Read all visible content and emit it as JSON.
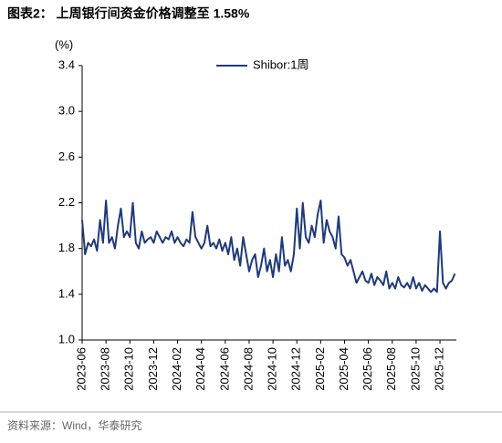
{
  "chart_data": {
    "type": "line",
    "title": "图表2： 上周银行间资金价格调整至 1.58%",
    "ylabel": "(%)",
    "source": "资料来源：Wind，华泰研究",
    "legend_position": "upper center",
    "ylim": [
      1.0,
      3.4
    ],
    "yticks": [
      {
        "value": 1.0,
        "label": "1.0"
      },
      1.4,
      1.8,
      2.2,
      2.6,
      {
        "value": 3.0,
        "label": "3.0"
      },
      3.4
    ],
    "categories": [
      "2023-06",
      null,
      null,
      null,
      null,
      null,
      null,
      null,
      "2023-08",
      null,
      null,
      null,
      null,
      null,
      null,
      null,
      "2023-10",
      null,
      null,
      null,
      null,
      null,
      null,
      null,
      "2023-12",
      null,
      null,
      null,
      null,
      null,
      null,
      null,
      "2024-02",
      null,
      null,
      null,
      null,
      null,
      null,
      null,
      "2024-04",
      null,
      null,
      null,
      null,
      null,
      null,
      null,
      "2024-06",
      null,
      null,
      null,
      null,
      null,
      null,
      null,
      "2024-08",
      null,
      null,
      null,
      null,
      null,
      null,
      null,
      "2024-10",
      null,
      null,
      null,
      null,
      null,
      null,
      null,
      "2024-12",
      null,
      null,
      null,
      null,
      null,
      null,
      null,
      "2025-02",
      null,
      null,
      null,
      null,
      null,
      null,
      null,
      "2025-04",
      null,
      null,
      null,
      null,
      null,
      null,
      null,
      "2025-06",
      null,
      null,
      null,
      null,
      null,
      null,
      null,
      "2025-08",
      null,
      null,
      null,
      null,
      null,
      null,
      null,
      "2025-10",
      null,
      null,
      null,
      null,
      null,
      null,
      null,
      "2025-12",
      null,
      null,
      null,
      null,
      null
    ],
    "series": [
      {
        "name": "Shibor:1周",
        "color": "#1f3a7a",
        "values": [
          2.05,
          1.75,
          1.85,
          1.82,
          1.88,
          1.78,
          2.05,
          1.85,
          2.22,
          1.85,
          1.9,
          1.8,
          2.0,
          2.15,
          1.9,
          1.95,
          1.9,
          2.2,
          1.85,
          1.8,
          1.95,
          1.85,
          1.88,
          1.9,
          1.85,
          1.95,
          1.9,
          1.85,
          1.9,
          1.88,
          1.95,
          1.85,
          1.9,
          1.85,
          1.82,
          1.88,
          1.85,
          2.12,
          1.9,
          1.85,
          1.8,
          1.85,
          2.0,
          1.82,
          1.85,
          1.8,
          1.88,
          1.78,
          1.85,
          1.75,
          1.9,
          1.7,
          1.8,
          1.65,
          1.9,
          1.75,
          1.6,
          1.7,
          1.75,
          1.55,
          1.65,
          1.8,
          1.6,
          1.7,
          1.55,
          1.75,
          1.6,
          1.9,
          1.65,
          1.7,
          1.6,
          1.75,
          2.15,
          1.8,
          2.2,
          1.9,
          1.85,
          2.0,
          1.9,
          2.1,
          2.22,
          1.85,
          2.05,
          1.95,
          1.9,
          1.8,
          2.08,
          1.75,
          1.72,
          1.65,
          1.7,
          1.6,
          1.5,
          1.55,
          1.6,
          1.52,
          1.5,
          1.58,
          1.48,
          1.55,
          1.52,
          1.48,
          1.6,
          1.45,
          1.5,
          1.45,
          1.55,
          1.48,
          1.46,
          1.5,
          1.45,
          1.55,
          1.45,
          1.5,
          1.43,
          1.48,
          1.45,
          1.42,
          1.45,
          1.42,
          1.95,
          1.5,
          1.45,
          1.5,
          1.52,
          1.58
        ]
      }
    ]
  }
}
